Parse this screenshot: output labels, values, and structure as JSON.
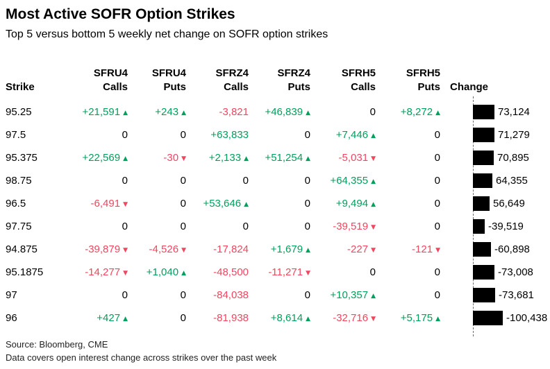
{
  "title": "Most Active SOFR Option Strikes",
  "subtitle": "Top 5 versus bottom 5 weekly net change on SOFR option strikes",
  "colors": {
    "positive": "#00A05C",
    "negative": "#F2455F",
    "bar": "#000000"
  },
  "table": {
    "strike_header": "Strike",
    "change_header": "Change",
    "column_groups": [
      {
        "contract": "SFRU4",
        "type": "Calls"
      },
      {
        "contract": "SFRU4",
        "type": "Puts"
      },
      {
        "contract": "SFRZ4",
        "type": "Calls"
      },
      {
        "contract": "SFRZ4",
        "type": "Puts"
      },
      {
        "contract": "SFRH5",
        "type": "Calls"
      },
      {
        "contract": "SFRH5",
        "type": "Puts"
      }
    ],
    "rows": [
      {
        "strike": "95.25",
        "values": [
          {
            "t": "+21,591",
            "a": "up"
          },
          {
            "t": "+243",
            "a": "up"
          },
          {
            "t": "-3,821",
            "a": ""
          },
          {
            "t": "+46,839",
            "a": "up"
          },
          {
            "t": "0",
            "a": ""
          },
          {
            "t": "+8,272",
            "a": "up"
          }
        ],
        "change": 73124,
        "change_label": "73,124"
      },
      {
        "strike": "97.5",
        "values": [
          {
            "t": "0",
            "a": ""
          },
          {
            "t": "0",
            "a": ""
          },
          {
            "t": "+63,833",
            "a": ""
          },
          {
            "t": "0",
            "a": ""
          },
          {
            "t": "+7,446",
            "a": "up"
          },
          {
            "t": "0",
            "a": ""
          }
        ],
        "change": 71279,
        "change_label": "71,279"
      },
      {
        "strike": "95.375",
        "values": [
          {
            "t": "+22,569",
            "a": "up"
          },
          {
            "t": "-30",
            "a": "down"
          },
          {
            "t": "+2,133",
            "a": "up"
          },
          {
            "t": "+51,254",
            "a": "up"
          },
          {
            "t": "-5,031",
            "a": "down"
          },
          {
            "t": "0",
            "a": ""
          }
        ],
        "change": 70895,
        "change_label": "70,895"
      },
      {
        "strike": "98.75",
        "values": [
          {
            "t": "0",
            "a": ""
          },
          {
            "t": "0",
            "a": ""
          },
          {
            "t": "0",
            "a": ""
          },
          {
            "t": "0",
            "a": ""
          },
          {
            "t": "+64,355",
            "a": "up"
          },
          {
            "t": "0",
            "a": ""
          }
        ],
        "change": 64355,
        "change_label": "64,355"
      },
      {
        "strike": "96.5",
        "values": [
          {
            "t": "-6,491",
            "a": "down"
          },
          {
            "t": "0",
            "a": ""
          },
          {
            "t": "+53,646",
            "a": "up"
          },
          {
            "t": "0",
            "a": ""
          },
          {
            "t": "+9,494",
            "a": "up"
          },
          {
            "t": "0",
            "a": ""
          }
        ],
        "change": 56649,
        "change_label": "56,649"
      },
      {
        "strike": "97.75",
        "values": [
          {
            "t": "0",
            "a": ""
          },
          {
            "t": "0",
            "a": ""
          },
          {
            "t": "0",
            "a": ""
          },
          {
            "t": "0",
            "a": ""
          },
          {
            "t": "-39,519",
            "a": "down"
          },
          {
            "t": "0",
            "a": ""
          }
        ],
        "change": -39519,
        "change_label": "-39,519"
      },
      {
        "strike": "94.875",
        "values": [
          {
            "t": "-39,879",
            "a": "down"
          },
          {
            "t": "-4,526",
            "a": "down"
          },
          {
            "t": "-17,824",
            "a": ""
          },
          {
            "t": "+1,679",
            "a": "up"
          },
          {
            "t": "-227",
            "a": "down"
          },
          {
            "t": "-121",
            "a": "down"
          }
        ],
        "change": -60898,
        "change_label": "-60,898"
      },
      {
        "strike": "95.1875",
        "values": [
          {
            "t": "-14,277",
            "a": "down"
          },
          {
            "t": "+1,040",
            "a": "up"
          },
          {
            "t": "-48,500",
            "a": ""
          },
          {
            "t": "-11,271",
            "a": "down"
          },
          {
            "t": "0",
            "a": ""
          },
          {
            "t": "0",
            "a": ""
          }
        ],
        "change": -73008,
        "change_label": "-73,008"
      },
      {
        "strike": "97",
        "values": [
          {
            "t": "0",
            "a": ""
          },
          {
            "t": "0",
            "a": ""
          },
          {
            "t": "-84,038",
            "a": ""
          },
          {
            "t": "0",
            "a": ""
          },
          {
            "t": "+10,357",
            "a": "up"
          },
          {
            "t": "0",
            "a": ""
          }
        ],
        "change": -73681,
        "change_label": "-73,681"
      },
      {
        "strike": "96",
        "values": [
          {
            "t": "+427",
            "a": "up"
          },
          {
            "t": "0",
            "a": ""
          },
          {
            "t": "-81,938",
            "a": ""
          },
          {
            "t": "+8,614",
            "a": "up"
          },
          {
            "t": "-32,716",
            "a": "down"
          },
          {
            "t": "+5,175",
            "a": "up"
          }
        ],
        "change": -100438,
        "change_label": "-100,438"
      }
    ]
  },
  "footer": {
    "source": "Source: Bloomberg, CME",
    "note": "Data covers open interest change across strikes over the past week"
  },
  "chart_data": {
    "type": "table",
    "title": "Most Active SOFR Option Strikes",
    "subtitle": "Top 5 versus bottom 5 weekly net change on SOFR option strikes",
    "columns": [
      "Strike",
      "SFRU4 Calls",
      "SFRU4 Puts",
      "SFRZ4 Calls",
      "SFRZ4 Puts",
      "SFRH5 Calls",
      "SFRH5 Puts",
      "Change"
    ],
    "rows": [
      [
        "95.25",
        21591,
        243,
        -3821,
        46839,
        0,
        8272,
        73124
      ],
      [
        "97.5",
        0,
        0,
        63833,
        0,
        7446,
        0,
        71279
      ],
      [
        "95.375",
        22569,
        -30,
        2133,
        51254,
        -5031,
        0,
        70895
      ],
      [
        "98.75",
        0,
        0,
        0,
        0,
        64355,
        0,
        64355
      ],
      [
        "96.5",
        -6491,
        0,
        53646,
        0,
        9494,
        0,
        56649
      ],
      [
        "97.75",
        0,
        0,
        0,
        0,
        -39519,
        0,
        -39519
      ],
      [
        "94.875",
        -39879,
        -4526,
        -17824,
        1679,
        -227,
        -121,
        -60898
      ],
      [
        "95.1875",
        -14277,
        1040,
        -48500,
        -11271,
        0,
        0,
        -73008
      ],
      [
        "97",
        0,
        0,
        -84038,
        0,
        10357,
        0,
        -73681
      ],
      [
        "96",
        427,
        0,
        -81938,
        8614,
        -32716,
        5175,
        -100438
      ]
    ],
    "embedded_bar_chart": {
      "type": "bar",
      "column": "Change",
      "values": [
        73124,
        71279,
        70895,
        64355,
        56649,
        -39519,
        -60898,
        -73008,
        -73681,
        -100438
      ],
      "bar_color": "#000000",
      "axis": "dashed vertical zero line at left of bars",
      "orientation": "horizontal"
    },
    "positive_color": "#00A05C",
    "negative_color": "#F2455F",
    "grid": false,
    "legend": false
  }
}
